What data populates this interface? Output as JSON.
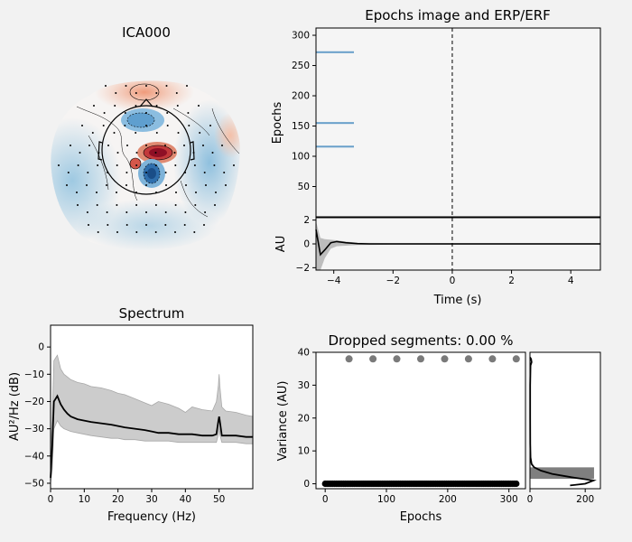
{
  "figure": {
    "background": "#f2f2f2"
  },
  "chart_data": [
    {
      "type": "heatmap",
      "title": "ICA000",
      "colormap": "RdBu_r",
      "description_visible": "scalp topography with sensor dots and contour lines"
    },
    {
      "type": "heatmap",
      "title": "Epochs image and ERP/ERF",
      "ylabel": "Epochs",
      "xlim": [
        -4.6,
        5.0
      ],
      "ylim": [
        0,
        312
      ],
      "yticks": [
        50,
        100,
        150,
        200,
        250,
        300
      ],
      "marker_line_x": 0,
      "blue_marks_at_epochs": [
        272,
        155,
        116
      ]
    },
    {
      "type": "line",
      "title": "",
      "xlabel": "Time (s)",
      "ylabel": "AU",
      "xlim": [
        -4.6,
        5.0
      ],
      "ylim": [
        -2.2,
        2.2
      ],
      "xticks": [
        -4,
        -2,
        0,
        2,
        4
      ],
      "yticks": [
        -2,
        0,
        2
      ],
      "x": [
        -4.6,
        -4.45,
        -4.3,
        -4.1,
        -3.9,
        -3.6,
        -3.2,
        -2.8,
        -2.0,
        -1.0,
        0,
        1,
        2,
        3,
        4,
        5
      ],
      "series": [
        {
          "values": [
            1.2,
            -0.9,
            -0.5,
            0.1,
            0.2,
            0.1,
            0.02,
            0,
            0,
            0,
            0,
            0,
            0,
            0,
            0,
            0
          ]
        }
      ],
      "band_upper": [
        1.9,
        0.5,
        0.4,
        0.35,
        0.3,
        0.2,
        0.1,
        0.08,
        0.07,
        0.07,
        0.07,
        0.07,
        0.07,
        0.07,
        0.07,
        0.07
      ],
      "band_lower": [
        -2.2,
        -2.2,
        -1.2,
        -0.4,
        -0.2,
        -0.15,
        -0.1,
        -0.08,
        -0.07,
        -0.07,
        -0.07,
        -0.07,
        -0.07,
        -0.07,
        -0.07,
        -0.07
      ]
    },
    {
      "type": "line",
      "title": "Spectrum",
      "xlabel": "Frequency (Hz)",
      "ylabel": "AU²/Hz (dB)",
      "xlim": [
        0,
        60
      ],
      "ylim": [
        -52,
        8
      ],
      "xticks": [
        0,
        10,
        20,
        30,
        40,
        50
      ],
      "yticks": [
        0,
        -10,
        -20,
        -30,
        -40,
        -50
      ],
      "x": [
        0,
        0.5,
        1,
        2,
        3,
        4,
        5,
        6,
        8,
        10,
        12,
        15,
        18,
        20,
        22,
        25,
        28,
        30,
        32,
        35,
        38,
        40,
        42,
        45,
        48,
        49.2,
        49.8,
        50,
        50.2,
        50.8,
        52,
        55,
        58,
        60
      ],
      "series": [
        {
          "name": "mean",
          "values": [
            -48,
            -36,
            -20,
            -18,
            -21,
            -23,
            -24.5,
            -25.5,
            -26.5,
            -27,
            -27.5,
            -28,
            -28.5,
            -29,
            -29.5,
            -30,
            -30.5,
            -31,
            -31.5,
            -31.5,
            -32,
            -32,
            -32,
            -32.5,
            -32.5,
            -32,
            -27,
            -25.5,
            -27,
            -32.5,
            -32.5,
            -32.5,
            -33,
            -33
          ]
        }
      ],
      "band_upper": [
        -40,
        -25,
        -5,
        -3,
        -8,
        -10,
        -11,
        -12,
        -13,
        -13.5,
        -14.5,
        -15,
        -16,
        -17,
        -17.5,
        -19,
        -20.5,
        -21.5,
        -20,
        -21,
        -22.5,
        -24,
        -22,
        -23,
        -23.5,
        -20,
        -14,
        -10,
        -14,
        -22,
        -23.5,
        -24,
        -25,
        -25.5
      ],
      "band_lower": [
        -50,
        -45,
        -30,
        -27,
        -29,
        -30,
        -30.5,
        -31,
        -31.5,
        -32,
        -32.5,
        -33,
        -33.5,
        -33.5,
        -34,
        -34,
        -34.5,
        -34.5,
        -34.5,
        -34.5,
        -35,
        -35,
        -35,
        -35,
        -35,
        -35,
        -32,
        -30,
        -32,
        -35,
        -35,
        -35,
        -35.5,
        -35.5
      ]
    },
    {
      "type": "scatter",
      "title": "Dropped segments: 0.00 %",
      "xlabel": "Epochs",
      "ylabel": "Variance (AU)",
      "xlim": [
        -15,
        327
      ],
      "ylim": [
        -1.5,
        40
      ],
      "xticks": [
        0,
        100,
        200,
        300
      ],
      "yticks": [
        0,
        10,
        20,
        30,
        40
      ],
      "high_points": {
        "x": [
          39,
          78,
          117,
          156,
          195,
          234,
          273,
          312
        ],
        "y": [
          38,
          38,
          38,
          38,
          38,
          38,
          38,
          38
        ]
      },
      "baseline": {
        "x_start": 0,
        "x_end": 312,
        "y": 0
      }
    },
    {
      "type": "bar",
      "title": "",
      "orientation": "horizontal",
      "xlim": [
        0,
        255
      ],
      "xticks": [
        0,
        200
      ],
      "bins": [
        {
          "y_from": 1.5,
          "y_to": 5.0,
          "count": 232
        }
      ],
      "density_y": [
        -0.5,
        0,
        1,
        2,
        3,
        4,
        5,
        6,
        8,
        12,
        20,
        30,
        36,
        37,
        38,
        38.5
      ],
      "density_x": [
        145,
        200,
        230,
        150,
        80,
        40,
        15,
        6,
        2,
        1,
        0.5,
        0.5,
        2,
        6,
        4,
        0
      ]
    }
  ]
}
